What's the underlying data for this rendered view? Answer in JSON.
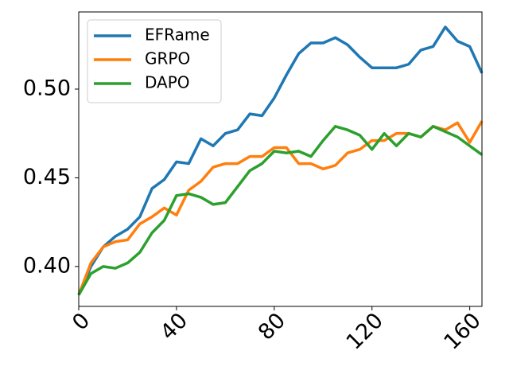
{
  "chart_data": {
    "type": "line",
    "x": [
      0,
      5,
      10,
      15,
      20,
      25,
      30,
      35,
      40,
      45,
      50,
      55,
      60,
      65,
      70,
      75,
      80,
      85,
      90,
      95,
      100,
      105,
      110,
      115,
      120,
      125,
      130,
      135,
      140,
      145,
      150,
      155,
      160,
      165
    ],
    "series": [
      {
        "name": "EFRame",
        "color": "#1f77b4",
        "values": [
          0.384,
          0.4,
          0.411,
          0.417,
          0.421,
          0.428,
          0.444,
          0.449,
          0.459,
          0.458,
          0.472,
          0.468,
          0.475,
          0.477,
          0.486,
          0.485,
          0.495,
          0.508,
          0.52,
          0.526,
          0.526,
          0.529,
          0.525,
          0.518,
          0.512,
          0.512,
          0.512,
          0.514,
          0.522,
          0.524,
          0.535,
          0.527,
          0.524,
          0.509
        ]
      },
      {
        "name": "GRPO",
        "color": "#ff7f0e",
        "values": [
          0.384,
          0.402,
          0.411,
          0.414,
          0.415,
          0.424,
          0.428,
          0.433,
          0.429,
          0.443,
          0.448,
          0.456,
          0.458,
          0.458,
          0.462,
          0.462,
          0.467,
          0.467,
          0.458,
          0.458,
          0.455,
          0.457,
          0.464,
          0.466,
          0.471,
          0.471,
          0.475,
          0.475,
          0.473,
          0.479,
          0.477,
          0.481,
          0.47,
          0.482
        ]
      },
      {
        "name": "DAPO",
        "color": "#2ca02c",
        "values": [
          0.384,
          0.396,
          0.4,
          0.399,
          0.402,
          0.408,
          0.419,
          0.426,
          0.44,
          0.441,
          0.439,
          0.435,
          0.436,
          0.445,
          0.454,
          0.458,
          0.465,
          0.464,
          0.465,
          0.462,
          0.471,
          0.479,
          0.477,
          0.474,
          0.466,
          0.475,
          0.468,
          0.475,
          0.473,
          0.479,
          0.476,
          0.473,
          0.468,
          0.463
        ]
      }
    ],
    "xlim": [
      0,
      165
    ],
    "ylim": [
      0.3775,
      0.5435
    ],
    "xticks": [
      0,
      40,
      80,
      120,
      160
    ],
    "yticks": [
      {
        "value": 0.4,
        "label": "0.40"
      },
      0.45,
      {
        "value": 0.5,
        "label": "0.50"
      }
    ],
    "legend": "upper-left",
    "grid": false
  }
}
